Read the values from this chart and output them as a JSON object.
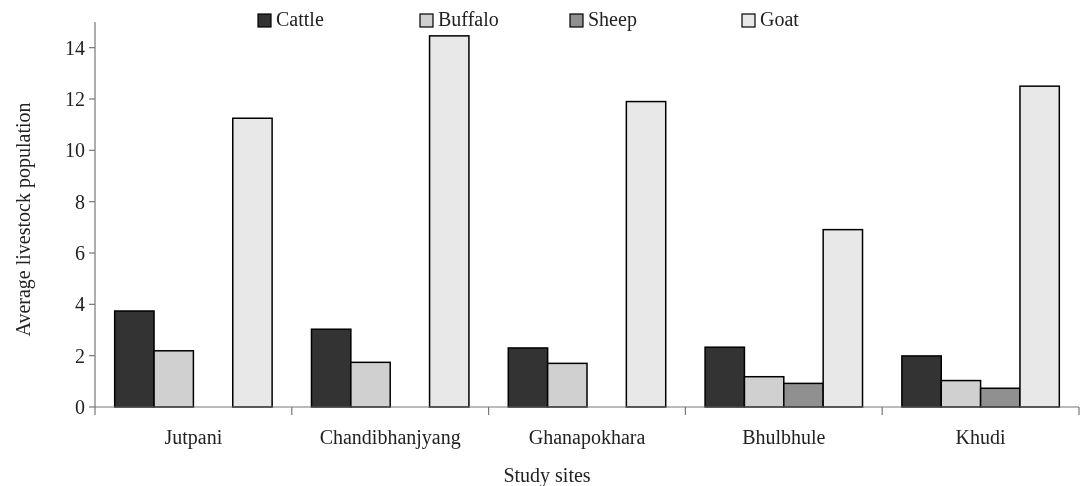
{
  "chart_data": {
    "type": "bar",
    "xlabel": "Study sites",
    "ylabel": "Average livestock population",
    "categories": [
      "Jutpani",
      "Chandibhanjyang",
      "Ghanapokhara",
      "Bhulbhule",
      "Khudi"
    ],
    "series": [
      {
        "name": "Cattle",
        "color": "#333333",
        "values": [
          3.74,
          3.03,
          2.3,
          2.33,
          1.99
        ]
      },
      {
        "name": "Buffalo",
        "color": "#d0d0d0",
        "values": [
          2.19,
          1.74,
          1.7,
          1.18,
          1.03
        ]
      },
      {
        "name": "Sheep",
        "color": "#909090",
        "values": [
          0,
          0,
          0,
          0.92,
          0.73
        ]
      },
      {
        "name": "Goat",
        "color": "#e8e8e8",
        "values": [
          11.25,
          14.46,
          11.9,
          6.91,
          12.5
        ]
      }
    ],
    "ylim": [
      0,
      15
    ],
    "yticks": [
      0,
      2,
      4,
      6,
      8,
      10,
      12,
      14
    ],
    "grid": false,
    "legend": "top"
  }
}
